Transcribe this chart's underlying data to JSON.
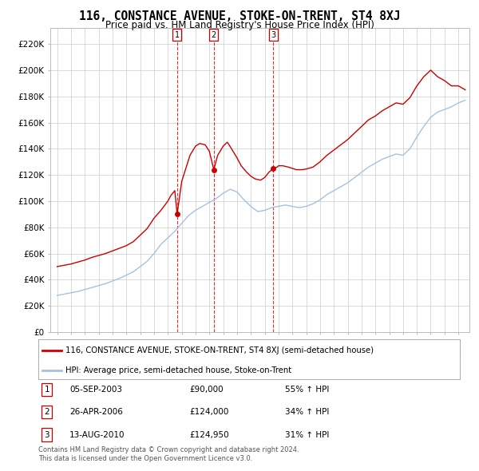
{
  "title": "116, CONSTANCE AVENUE, STOKE-ON-TRENT, ST4 8XJ",
  "subtitle": "Price paid vs. HM Land Registry's House Price Index (HPI)",
  "legend_line1": "116, CONSTANCE AVENUE, STOKE-ON-TRENT, ST4 8XJ (semi-detached house)",
  "legend_line2": "HPI: Average price, semi-detached house, Stoke-on-Trent",
  "transactions": [
    {
      "num": 1,
      "date": "05-SEP-2003",
      "price": "£90,000",
      "change": "55% ↑ HPI",
      "x_year": 2003.67,
      "y_price": 90000
    },
    {
      "num": 2,
      "date": "26-APR-2006",
      "price": "£124,000",
      "change": "34% ↑ HPI",
      "x_year": 2006.32,
      "y_price": 124000
    },
    {
      "num": 3,
      "date": "13-AUG-2010",
      "price": "£124,950",
      "change": "31% ↑ HPI",
      "x_year": 2010.62,
      "y_price": 124950
    }
  ],
  "footer1": "Contains HM Land Registry data © Crown copyright and database right 2024.",
  "footer2": "This data is licensed under the Open Government Licence v3.0.",
  "hpi_color": "#a4c2e0",
  "price_color": "#cc0000",
  "marker_color": "#cc0000",
  "vline_color": "#cc0000",
  "ytick_values": [
    0,
    20000,
    40000,
    60000,
    80000,
    100000,
    120000,
    140000,
    160000,
    180000,
    200000,
    220000
  ],
  "ylim": [
    0,
    232000
  ],
  "xlim_start": 1994.5,
  "xlim_end": 2024.8,
  "background_color": "#ffffff",
  "grid_color": "#cccccc",
  "years_hpi": [
    1995.0,
    1995.5,
    1996.0,
    1996.5,
    1997.0,
    1997.5,
    1998.0,
    1998.5,
    1999.0,
    1999.5,
    2000.0,
    2000.5,
    2001.0,
    2001.5,
    2002.0,
    2002.5,
    2003.0,
    2003.5,
    2004.0,
    2004.5,
    2005.0,
    2005.5,
    2006.0,
    2006.5,
    2007.0,
    2007.5,
    2008.0,
    2008.5,
    2009.0,
    2009.5,
    2010.0,
    2010.5,
    2011.0,
    2011.5,
    2012.0,
    2012.5,
    2013.0,
    2013.5,
    2014.0,
    2014.5,
    2015.0,
    2015.5,
    2016.0,
    2016.5,
    2017.0,
    2017.5,
    2018.0,
    2018.5,
    2019.0,
    2019.5,
    2020.0,
    2020.5,
    2021.0,
    2021.5,
    2022.0,
    2022.5,
    2023.0,
    2023.5,
    2024.0,
    2024.5
  ],
  "hpi_values": [
    28000,
    29000,
    30000,
    31000,
    32500,
    34000,
    35500,
    37000,
    39000,
    41000,
    43500,
    46000,
    50000,
    54000,
    60000,
    67000,
    72000,
    77000,
    83000,
    89000,
    93000,
    96000,
    99000,
    102000,
    106000,
    109000,
    107000,
    101000,
    96000,
    92000,
    93000,
    95000,
    96000,
    97000,
    96000,
    95000,
    96000,
    98000,
    101000,
    105000,
    108000,
    111000,
    114000,
    118000,
    122000,
    126000,
    129000,
    132000,
    134000,
    136000,
    135000,
    140000,
    149000,
    157000,
    164000,
    168000,
    170000,
    172000,
    175000,
    177000
  ],
  "years_price": [
    1995.0,
    1995.5,
    1996.0,
    1996.5,
    1997.0,
    1997.5,
    1998.0,
    1998.5,
    1999.0,
    1999.5,
    2000.0,
    2000.5,
    2001.0,
    2001.5,
    2002.0,
    2002.5,
    2003.0,
    2003.2,
    2003.5,
    2003.67,
    2004.0,
    2004.3,
    2004.6,
    2005.0,
    2005.3,
    2005.7,
    2006.0,
    2006.32,
    2006.6,
    2007.0,
    2007.3,
    2007.6,
    2008.0,
    2008.3,
    2008.7,
    2009.0,
    2009.3,
    2009.7,
    2010.0,
    2010.3,
    2010.62,
    2010.9,
    2011.0,
    2011.3,
    2011.7,
    2012.0,
    2012.3,
    2012.7,
    2013.0,
    2013.5,
    2014.0,
    2014.5,
    2015.0,
    2015.5,
    2016.0,
    2016.5,
    2017.0,
    2017.5,
    2018.0,
    2018.5,
    2019.0,
    2019.5,
    2020.0,
    2020.5,
    2021.0,
    2021.5,
    2022.0,
    2022.5,
    2023.0,
    2023.5,
    2024.0,
    2024.5
  ],
  "price_values": [
    50000,
    51000,
    52000,
    53500,
    55000,
    57000,
    58500,
    60000,
    62000,
    64000,
    66000,
    69000,
    74000,
    79000,
    87000,
    93000,
    100000,
    104000,
    108000,
    90000,
    115000,
    125000,
    135000,
    142000,
    144000,
    143000,
    138000,
    124000,
    135000,
    142000,
    145000,
    140000,
    133000,
    127000,
    122000,
    119000,
    117000,
    116000,
    118000,
    122000,
    124950,
    126000,
    127000,
    127000,
    126000,
    125000,
    124000,
    124000,
    124500,
    126000,
    130000,
    135000,
    139000,
    143000,
    147000,
    152000,
    157000,
    162000,
    165000,
    169000,
    172000,
    175000,
    174000,
    179000,
    188000,
    195000,
    200000,
    195000,
    192000,
    188000,
    188000,
    185000
  ]
}
